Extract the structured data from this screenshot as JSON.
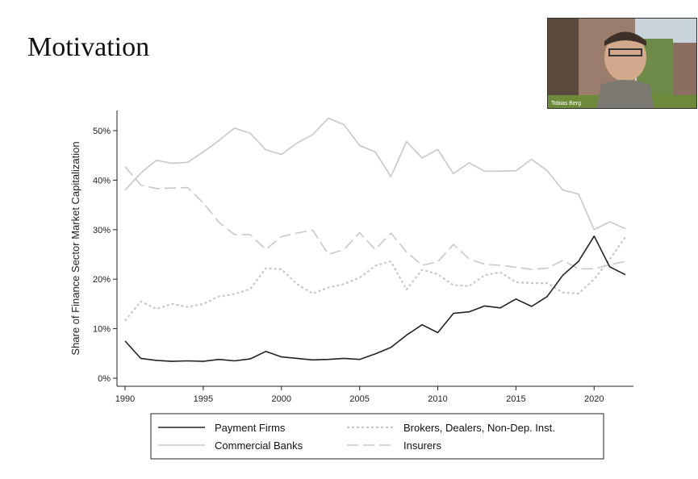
{
  "slide": {
    "title": "Motivation"
  },
  "webcam": {
    "name": "Tobias Berg"
  },
  "chart_data": {
    "type": "line",
    "ylabel": "Share of Finance Sector Market Capitalization",
    "xlabel": "",
    "xlim": [
      1990,
      2022
    ],
    "ylim": [
      0,
      52
    ],
    "xticks": [
      1990,
      1995,
      2000,
      2005,
      2010,
      2015,
      2020
    ],
    "yticks": [
      0,
      10,
      20,
      30,
      40,
      50
    ],
    "ytick_labels": [
      "0%",
      "10%",
      "20%",
      "30%",
      "40%",
      "50%"
    ],
    "xticks_labels": [
      "1990",
      "1995",
      "2000",
      "2005",
      "2010",
      "2015",
      "2020"
    ],
    "legend_position": "bottom",
    "x": [
      1990,
      1991,
      1992,
      1993,
      1994,
      1995,
      1996,
      1997,
      1998,
      1999,
      2000,
      2001,
      2002,
      2003,
      2004,
      2005,
      2006,
      2007,
      2008,
      2009,
      2010,
      2011,
      2012,
      2013,
      2014,
      2015,
      2016,
      2017,
      2018,
      2019,
      2020,
      2021,
      2022
    ],
    "series": [
      {
        "name": "Payment Firms",
        "style": "solid",
        "color": "#222222",
        "values": [
          7.5,
          4.0,
          3.6,
          3.4,
          3.5,
          3.4,
          3.8,
          3.5,
          3.9,
          5.4,
          4.3,
          4.0,
          3.7,
          3.8,
          4.0,
          3.8,
          4.9,
          6.2,
          8.7,
          10.8,
          9.2,
          13.1,
          13.4,
          14.6,
          14.2,
          16.0,
          14.5,
          16.5,
          20.8,
          23.6,
          28.7,
          22.5,
          20.9
        ]
      },
      {
        "name": "Brokers, Dealers, Non-Dep. Inst.",
        "style": "dotted",
        "color": "#c8c8c8",
        "values": [
          11.6,
          15.5,
          14.0,
          15.0,
          14.4,
          15.0,
          16.5,
          17.0,
          18.0,
          22.2,
          22.0,
          19.0,
          17.1,
          18.3,
          19.0,
          20.3,
          22.7,
          23.6,
          17.9,
          21.9,
          21.0,
          18.8,
          18.6,
          20.8,
          21.4,
          19.4,
          19.2,
          19.2,
          17.3,
          17.1,
          20.0,
          24.0,
          28.5
        ]
      },
      {
        "name": "Commercial Banks",
        "style": "solid",
        "color": "#c8c8c8",
        "values": [
          38.0,
          41.4,
          44.0,
          43.4,
          43.6,
          45.7,
          48.0,
          50.5,
          49.5,
          46.1,
          45.2,
          47.5,
          49.2,
          52.5,
          51.2,
          47.0,
          45.7,
          40.7,
          47.8,
          44.5,
          46.2,
          41.3,
          43.5,
          41.8,
          41.8,
          41.9,
          44.2,
          41.9,
          38.0,
          37.2,
          30.0,
          31.6,
          30.2
        ]
      },
      {
        "name": "Insurers",
        "style": "dashed",
        "color": "#c8c8c8",
        "values": [
          42.7,
          39.0,
          38.3,
          38.4,
          38.5,
          35.4,
          31.5,
          29.0,
          29.0,
          26.0,
          28.6,
          29.3,
          29.9,
          25.0,
          26.0,
          29.4,
          26.0,
          29.3,
          25.5,
          22.8,
          23.5,
          27.0,
          24.1,
          23.0,
          22.8,
          22.4,
          22.0,
          22.2,
          23.8,
          22.1,
          22.1,
          22.9,
          23.6
        ]
      }
    ]
  }
}
